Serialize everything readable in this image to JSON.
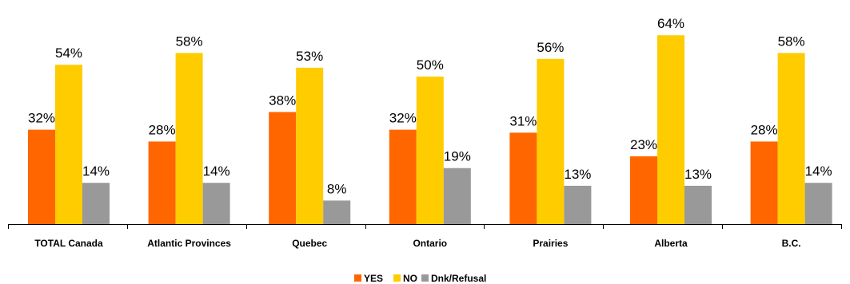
{
  "chart_data": {
    "type": "bar",
    "title": "",
    "xlabel": "",
    "ylabel": "",
    "ylim": [
      0,
      70
    ],
    "grid": false,
    "legend_position": "bottom",
    "categories": [
      "TOTAL Canada",
      "Atlantic Provinces",
      "Quebec",
      "Ontario",
      "Prairies",
      "Alberta",
      "B.C."
    ],
    "series": [
      {
        "name": "YES",
        "color": "#ff6600",
        "values": [
          32,
          28,
          38,
          32,
          31,
          23,
          28
        ],
        "labels": [
          "32%",
          "28%",
          "38%",
          "32%",
          "31%",
          "23%",
          "28%"
        ]
      },
      {
        "name": "NO",
        "color": "#ffcc00",
        "values": [
          54,
          58,
          53,
          50,
          56,
          64,
          58
        ],
        "labels": [
          "54%",
          "58%",
          "53%",
          "50%",
          "56%",
          "64%",
          "58%"
        ]
      },
      {
        "name": "Dnk/Refusal",
        "color": "#999999",
        "values": [
          14,
          14,
          8,
          19,
          13,
          13,
          14
        ],
        "labels": [
          "14%",
          "14%",
          "8%",
          "19%",
          "13%",
          "13%",
          "14%"
        ]
      }
    ]
  }
}
